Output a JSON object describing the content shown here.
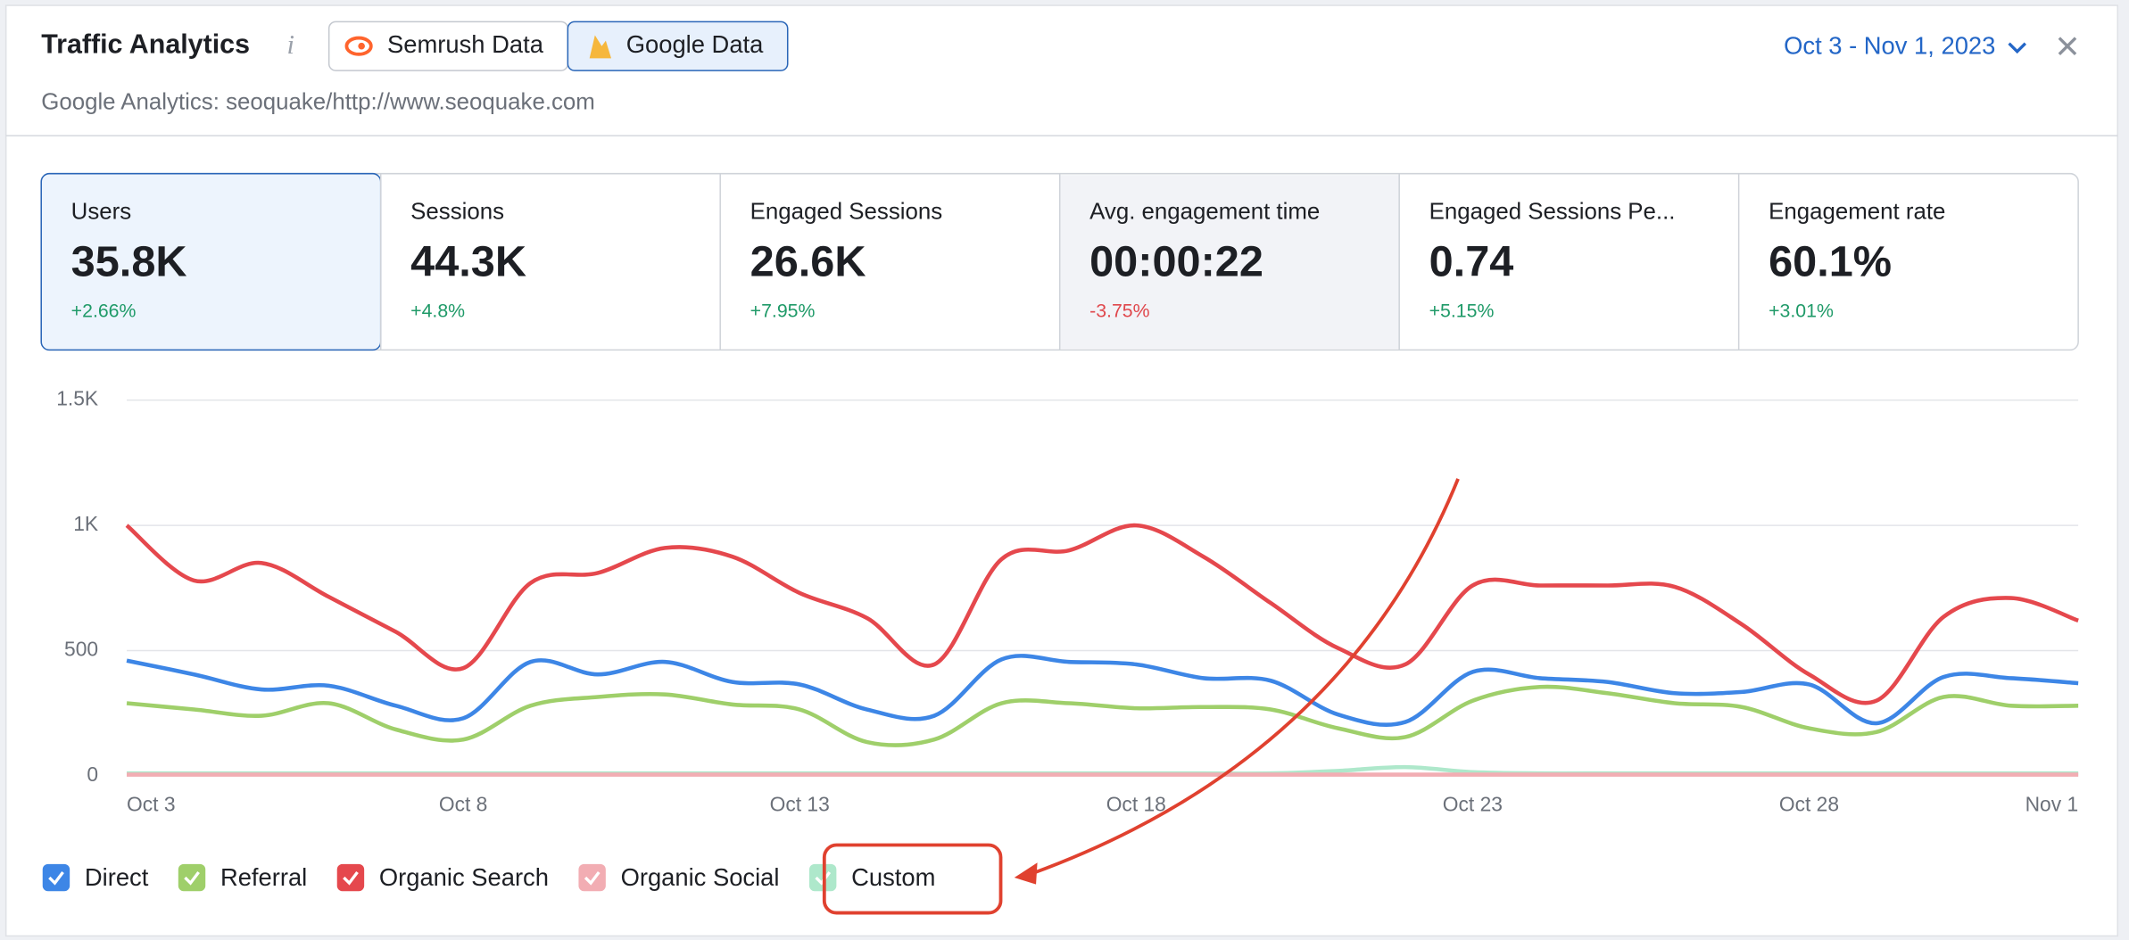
{
  "header": {
    "title": "Traffic Analytics",
    "info": "i",
    "tabs": [
      "Semrush Data",
      "Google Data"
    ],
    "subtitle": "Google Analytics: seoquake/http://www.seoquake.com",
    "date_range": "Oct 3 - Nov 1, 2023"
  },
  "metrics": [
    {
      "label": "Users",
      "value": "35.8K",
      "change": "+2.66%",
      "color": "#1f9a68"
    },
    {
      "label": "Sessions",
      "value": "44.3K",
      "change": "+4.8%",
      "color": "#1f9a68"
    },
    {
      "label": "Engaged Sessions",
      "value": "26.6K",
      "change": "+7.95%",
      "color": "#1f9a68"
    },
    {
      "label": "Avg. engagement time",
      "value": "00:00:22",
      "change": "-3.75%",
      "color": "#e0474c"
    },
    {
      "label": "Engaged Sessions Pe...",
      "value": "0.74",
      "change": "+5.15%",
      "color": "#1f9a68"
    },
    {
      "label": "Engagement rate",
      "value": "60.1%",
      "change": "+3.01%",
      "color": "#1f9a68"
    }
  ],
  "chart_data": {
    "type": "line",
    "categories": [
      "Oct 3",
      null,
      null,
      null,
      null,
      "Oct 8",
      null,
      null,
      null,
      null,
      "Oct 13",
      null,
      null,
      null,
      null,
      "Oct 18",
      null,
      null,
      null,
      null,
      "Oct 23",
      null,
      null,
      null,
      null,
      "Oct 28",
      null,
      null,
      null,
      "Nov 1"
    ],
    "series": [
      {
        "name": "Direct",
        "color": "#3d86e6",
        "values": [
          460,
          405,
          345,
          360,
          280,
          230,
          455,
          405,
          455,
          375,
          365,
          265,
          240,
          465,
          455,
          445,
          390,
          380,
          245,
          215,
          415,
          390,
          375,
          330,
          335,
          365,
          210,
          395,
          390,
          370
        ]
      },
      {
        "name": "Referral",
        "color": "#9fcf6a",
        "values": [
          290,
          265,
          240,
          290,
          185,
          145,
          280,
          315,
          325,
          285,
          265,
          135,
          145,
          290,
          290,
          270,
          275,
          265,
          190,
          155,
          300,
          355,
          330,
          290,
          275,
          190,
          175,
          315,
          280,
          280
        ]
      },
      {
        "name": "Organic Search",
        "color": "#e5484d",
        "values": [
          1000,
          780,
          850,
          715,
          575,
          430,
          770,
          810,
          910,
          875,
          730,
          630,
          445,
          865,
          900,
          1000,
          875,
          690,
          510,
          445,
          760,
          760,
          760,
          755,
          605,
          405,
          300,
          635,
          710,
          620
        ]
      },
      {
        "name": "Organic Social",
        "color": "#f2adb3",
        "values": [
          5,
          5,
          5,
          5,
          5,
          5,
          5,
          5,
          5,
          5,
          5,
          5,
          5,
          5,
          5,
          5,
          5,
          5,
          5,
          5,
          5,
          5,
          5,
          5,
          5,
          5,
          5,
          5,
          5,
          5
        ]
      },
      {
        "name": "Custom",
        "color": "#aee8cb",
        "values": [
          10,
          10,
          10,
          10,
          10,
          10,
          10,
          10,
          10,
          10,
          10,
          10,
          10,
          10,
          10,
          10,
          10,
          10,
          20,
          35,
          15,
          10,
          10,
          10,
          10,
          10,
          10,
          10,
          10,
          10
        ]
      }
    ],
    "ylim": [
      0,
      1500
    ],
    "yticks": [
      0,
      500,
      {
        "value": 1000,
        "label": "1K"
      },
      {
        "value": 1500,
        "label": "1.5K"
      }
    ],
    "grid": true
  }
}
